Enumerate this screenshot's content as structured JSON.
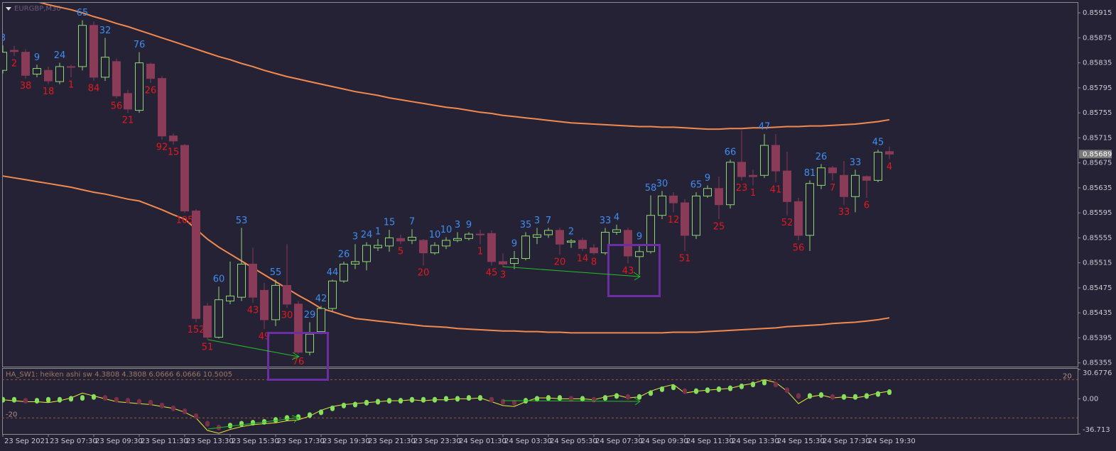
{
  "chart_data": [
    {
      "type": "candlestick",
      "title": "EURGBP,M30",
      "categories": [
        "23 Sep 2021",
        null,
        null,
        null,
        "23 Sep 07:30",
        null,
        null,
        null,
        "23 Sep 09:30",
        null,
        null,
        null,
        "23 Sep 11:30",
        null,
        null,
        null,
        "23 Sep 13:30",
        null,
        null,
        null,
        "23 Sep 15:30",
        null,
        null,
        null,
        "23 Sep 17:30",
        null,
        null,
        null,
        "23 Sep 19:30",
        null,
        null,
        null,
        "23 Sep 21:30",
        null,
        null,
        null,
        "23 Sep 23:30",
        null,
        null,
        null,
        "24 Sep 01:30",
        null,
        null,
        null,
        "24 Sep 03:30",
        null,
        null,
        null,
        "24 Sep 05:30",
        null,
        null,
        null,
        "24 Sep 07:30",
        null,
        null,
        null,
        "24 Sep 09:30",
        null,
        null,
        null,
        "24 Sep 11:30",
        null,
        null,
        null,
        "24 Sep 13:30",
        null,
        null,
        null,
        "24 Sep 15:30",
        null,
        null,
        null,
        "24 Sep 17:30",
        null,
        null,
        null,
        "24 Sep 19:30",
        null,
        null
      ],
      "open": [
        0.85823,
        0.85855,
        0.85852,
        0.85817,
        0.85823,
        0.85805,
        0.85829,
        0.85829,
        0.85895,
        0.85812,
        0.85837,
        0.85786,
        0.85759,
        0.85833,
        0.8581,
        0.85718,
        0.85703,
        0.85598,
        0.85446,
        0.85396,
        0.85454,
        0.8546,
        0.85513,
        0.85471,
        0.85424,
        0.85479,
        0.85449,
        0.85372,
        0.85405,
        0.85442,
        0.85486,
        0.85513,
        0.85517,
        0.85539,
        0.85542,
        0.85554,
        0.85551,
        0.85551,
        0.85531,
        0.85542,
        0.85551,
        0.85554,
        0.85561,
        0.85562,
        0.85517,
        0.85514,
        0.85522,
        0.85556,
        0.8556,
        0.85567,
        0.85548,
        0.85551,
        0.85539,
        0.85531,
        0.85564,
        0.85567,
        0.85525,
        0.85533,
        0.85591,
        0.85622,
        0.85611,
        0.85559,
        0.85622,
        0.85634,
        0.85608,
        0.85676,
        0.85655,
        0.85655,
        0.85703,
        0.85662,
        0.85613,
        0.85559,
        0.85639,
        0.85667,
        0.85655,
        0.85621,
        0.85653,
        0.85647,
        0.85693
      ],
      "high": [
        0.85863,
        0.85862,
        0.85857,
        0.85832,
        0.85829,
        0.85835,
        0.85832,
        0.85903,
        0.85901,
        0.85875,
        0.85842,
        0.85792,
        0.85852,
        0.85835,
        0.85814,
        0.85722,
        0.85705,
        0.85601,
        0.85451,
        0.85477,
        0.85517,
        0.85571,
        0.85539,
        0.85483,
        0.85488,
        0.85545,
        0.85454,
        0.8542,
        0.85446,
        0.85488,
        0.85517,
        0.85545,
        0.85548,
        0.85553,
        0.85568,
        0.8556,
        0.85569,
        0.85553,
        0.85548,
        0.85556,
        0.85564,
        0.85564,
        0.85568,
        0.85567,
        0.8553,
        0.85534,
        0.85564,
        0.85571,
        0.85571,
        0.85571,
        0.85553,
        0.85555,
        0.85545,
        0.85571,
        0.85576,
        0.85571,
        0.85545,
        0.85623,
        0.8563,
        0.85628,
        0.85617,
        0.85628,
        0.85639,
        0.85653,
        0.8568,
        0.85727,
        0.85664,
        0.85721,
        0.85721,
        0.85693,
        0.85619,
        0.85647,
        0.85673,
        0.8567,
        0.85678,
        0.85664,
        0.85655,
        0.85696,
        0.85701
      ],
      "low": [
        0.85818,
        0.85846,
        0.8581,
        0.85812,
        0.85801,
        0.85801,
        0.85812,
        0.85823,
        0.85806,
        0.85806,
        0.85778,
        0.85755,
        0.85755,
        0.85803,
        0.85712,
        0.85704,
        0.85595,
        0.8542,
        0.85392,
        0.85394,
        0.85449,
        0.85454,
        0.85451,
        0.85409,
        0.85414,
        0.85443,
        0.85369,
        0.85367,
        0.85401,
        0.85437,
        0.85483,
        0.85505,
        0.85503,
        0.85534,
        0.85533,
        0.85545,
        0.85545,
        0.85511,
        0.85528,
        0.85537,
        0.85548,
        0.85551,
        0.85545,
        0.85511,
        0.85508,
        0.85505,
        0.85519,
        0.85545,
        0.85555,
        0.85528,
        0.85539,
        0.85534,
        0.85528,
        0.85528,
        0.8556,
        0.85514,
        0.85496,
        0.8553,
        0.85585,
        0.85596,
        0.85534,
        0.85553,
        0.85619,
        0.85585,
        0.85602,
        0.85647,
        0.85639,
        0.85651,
        0.85644,
        0.85591,
        0.85551,
        0.85534,
        0.85633,
        0.85647,
        0.85608,
        0.85596,
        0.85619,
        0.85644,
        0.85681
      ],
      "close": [
        0.85852,
        0.85853,
        0.85815,
        0.85826,
        0.85806,
        0.85829,
        0.85828,
        0.85895,
        0.85812,
        0.85844,
        0.85782,
        0.85761,
        0.85835,
        0.8581,
        0.85718,
        0.8571,
        0.85598,
        0.85426,
        0.85396,
        0.85456,
        0.85462,
        0.85513,
        0.8546,
        0.85424,
        0.85479,
        0.85449,
        0.85372,
        0.85401,
        0.85442,
        0.85486,
        0.85513,
        0.85517,
        0.85543,
        0.85543,
        0.85555,
        0.8555,
        0.85556,
        0.85531,
        0.85543,
        0.85551,
        0.85554,
        0.85561,
        0.8556,
        0.85517,
        0.85513,
        0.85522,
        0.85558,
        0.8556,
        0.85567,
        0.85545,
        0.8555,
        0.85538,
        0.85531,
        0.85564,
        0.85568,
        0.85526,
        0.85533,
        0.85591,
        0.85622,
        0.85611,
        0.85559,
        0.85622,
        0.85634,
        0.85608,
        0.85676,
        0.85653,
        0.85653,
        0.85703,
        0.85662,
        0.85613,
        0.85559,
        0.85642,
        0.85667,
        0.85659,
        0.85621,
        0.85655,
        0.85647,
        0.85692,
        0.85689
      ],
      "bar_labels": [
        3,
        2,
        38,
        9,
        18,
        24,
        1,
        65,
        84,
        32,
        56,
        21,
        76,
        26,
        92,
        15,
        105,
        152,
        51,
        60,
        null,
        53,
        43,
        49,
        55,
        30,
        76,
        29,
        42,
        44,
        26,
        3,
        24,
        1,
        15,
        5,
        7,
        20,
        10,
        10,
        3,
        9,
        1,
        45,
        3,
        9,
        35,
        3,
        7,
        20,
        2,
        14,
        8,
        33,
        4,
        43,
        9,
        58,
        30,
        12,
        51,
        65,
        9,
        25,
        66,
        23,
        1,
        47,
        41,
        52,
        56,
        81,
        26,
        7,
        33,
        33,
        6,
        45,
        4
      ],
      "up_color": "#8fd673",
      "down_color": "#8a3b57",
      "up_label_color": "#3d8ef0",
      "down_label_color": "#e3191e",
      "bands": [
        {
          "color": "#f28a4e",
          "values": [
            0.85945,
            0.85941,
            0.85937,
            0.85933,
            0.85928,
            0.85924,
            0.8592,
            0.85915,
            0.85909,
            0.85904,
            0.85898,
            0.85893,
            0.85887,
            0.85881,
            0.85875,
            0.85869,
            0.85863,
            0.85857,
            0.85851,
            0.85845,
            0.8584,
            0.85834,
            0.85829,
            0.85823,
            0.85818,
            0.85813,
            0.85809,
            0.85805,
            0.85801,
            0.85797,
            0.85793,
            0.85789,
            0.85786,
            0.85783,
            0.85779,
            0.85776,
            0.85773,
            0.8577,
            0.85767,
            0.85764,
            0.85762,
            0.85759,
            0.85756,
            0.85754,
            0.85751,
            0.85749,
            0.85747,
            0.85745,
            0.85743,
            0.85741,
            0.85739,
            0.85738,
            0.85737,
            0.85736,
            0.85735,
            0.85734,
            0.85733,
            0.85733,
            0.85732,
            0.85732,
            0.85731,
            0.8573,
            0.85729,
            0.85729,
            0.8573,
            0.8573,
            0.85731,
            0.85731,
            0.85732,
            0.85733,
            0.85733,
            0.85734,
            0.85734,
            0.85735,
            0.85736,
            0.85737,
            0.85739,
            0.85741,
            0.85744
          ]
        },
        {
          "color": "#f28a4e",
          "values": [
            0.85654,
            0.85651,
            0.85648,
            0.85645,
            0.85642,
            0.85639,
            0.85636,
            0.85632,
            0.85628,
            0.85625,
            0.85621,
            0.85617,
            0.85614,
            0.85607,
            0.856,
            0.85592,
            0.85585,
            0.85569,
            0.85553,
            0.8554,
            0.85529,
            0.85518,
            0.85507,
            0.85496,
            0.85485,
            0.85474,
            0.85463,
            0.85453,
            0.85442,
            0.85437,
            0.85431,
            0.85426,
            0.85424,
            0.85422,
            0.8542,
            0.85418,
            0.85416,
            0.85414,
            0.85413,
            0.85412,
            0.8541,
            0.85409,
            0.85408,
            0.85407,
            0.85406,
            0.85406,
            0.85405,
            0.85405,
            0.85404,
            0.85404,
            0.85403,
            0.85403,
            0.85403,
            0.85403,
            0.85403,
            0.85403,
            0.85403,
            0.85403,
            0.85403,
            0.85404,
            0.85404,
            0.85404,
            0.85405,
            0.85406,
            0.85407,
            0.85408,
            0.85409,
            0.8541,
            0.85411,
            0.85413,
            0.85414,
            0.85415,
            0.85416,
            0.85418,
            0.85419,
            0.8542,
            0.85422,
            0.85424,
            0.85427
          ]
        }
      ],
      "last_price": 0.85689,
      "ylim": [
        0.85349,
        0.85931
      ],
      "yticks": [
        0.85915,
        0.85875,
        0.85835,
        0.85795,
        0.85755,
        0.85715,
        0.85675,
        0.85635,
        0.85595,
        0.85555,
        0.85515,
        0.85475,
        0.85435,
        0.85395,
        0.85355
      ]
    },
    {
      "type": "indicator",
      "title": "HA_SW1: heiken ashi sw 4.3808 4.3808 6.0666 6.0666 10.5005",
      "series": [
        {
          "type": "line",
          "color": "#e8e83a",
          "values": [
            -1,
            -2,
            -3,
            -3,
            -4,
            -2,
            1,
            6,
            3,
            0,
            -3,
            -4,
            -5,
            -6,
            -8,
            -10,
            -14,
            -20,
            -33,
            -36,
            -32,
            -29,
            -27,
            -26,
            -25,
            -23,
            -22,
            -18,
            -12,
            -8,
            -6,
            -5,
            -4,
            -3,
            -2,
            -2,
            -1,
            -2,
            -1,
            -1,
            0,
            0,
            1,
            -3,
            -7,
            -8,
            -3,
            1,
            1,
            0,
            0,
            0,
            -1,
            2,
            4,
            1,
            2,
            8,
            12,
            15,
            6,
            8,
            9,
            10,
            11,
            14,
            16,
            20,
            17,
            8,
            -5,
            2,
            4,
            1,
            2,
            1,
            3,
            6,
            8
          ]
        },
        {
          "type": "dots",
          "up_color": "#86e05a",
          "down_color": "#7a3148",
          "values": [
            -1,
            -1,
            -2,
            -2,
            -1,
            -1,
            0,
            1,
            2,
            1,
            -1,
            -2,
            -3,
            -4,
            -7,
            -10,
            -13,
            -18,
            -26,
            -30,
            -28,
            -26,
            -25,
            -24,
            -22,
            -20,
            -19,
            -17,
            -14,
            -10,
            -7,
            -6,
            -4,
            -3,
            -2,
            -2,
            -1,
            -1,
            -1,
            0,
            0,
            1,
            1,
            -1,
            -3,
            -4,
            -2,
            0,
            1,
            1,
            0,
            0,
            -1,
            1,
            3,
            2,
            2,
            6,
            10,
            12,
            8,
            8,
            9,
            10,
            11,
            13,
            15,
            17,
            15,
            9,
            3,
            3,
            4,
            2,
            2,
            2,
            3,
            5,
            7
          ]
        }
      ],
      "levels": [
        20,
        -20
      ],
      "ylim": [
        -36.713,
        30.6776
      ],
      "yticks": [
        30.6776,
        {
          "value": 0,
          "label": "0.00"
        },
        -36.713
      ]
    }
  ]
}
